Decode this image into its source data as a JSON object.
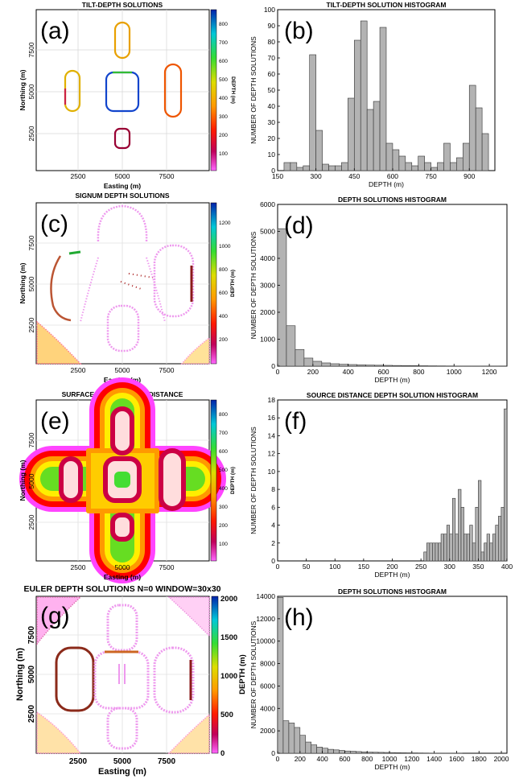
{
  "panels": [
    {
      "label": "(a)",
      "title": "TILT-DEPTH SOLUTIONS",
      "xlabel": "Easting (m)",
      "ylabel": "Northing (m)",
      "xticks": [
        "2500",
        "5000",
        "7500"
      ],
      "yticks": [
        "2500",
        "5000",
        "7500"
      ],
      "colorbar_label": "DEPTH (m)",
      "colorbar_ticks": [
        "100",
        "200",
        "300",
        "400",
        "500",
        "600",
        "700",
        "800"
      ]
    },
    {
      "label": "(c)",
      "title": "SIGNUM DEPTH SOLUTIONS",
      "xlabel": "Easting (m)",
      "ylabel": "Northing (m)",
      "xticks": [
        "2500",
        "5000",
        "7500"
      ],
      "yticks": [
        "2500",
        "5000",
        "7500"
      ],
      "colorbar_label": "DEPTH (m)",
      "colorbar_ticks": [
        "200",
        "400",
        "600",
        "800",
        "1000",
        "1200"
      ]
    },
    {
      "label": "(e)",
      "title": "SURFACE MAP - SOURCE DISTANCE",
      "xlabel": "Easting (m)",
      "ylabel": "Northing (m)",
      "xticks": [
        "2500",
        "5000",
        "7500"
      ],
      "yticks": [
        "2500",
        "5000",
        "7500"
      ],
      "colorbar_label": "DEPTH (m)",
      "colorbar_ticks": [
        "100",
        "200",
        "300",
        "400",
        "500",
        "600",
        "700",
        "800"
      ]
    },
    {
      "label": "(g)",
      "title": "EULER DEPTH SOLUTIONS N=0 WINDOW=30x30",
      "xlabel": "Easting (m)",
      "ylabel": "Northing (m)",
      "xticks": [
        "2500",
        "5000",
        "7500"
      ],
      "yticks": [
        "2500",
        "5000",
        "7500"
      ],
      "colorbar_label": "DEPTH (m)",
      "colorbar_ticks": [
        "0",
        "500",
        "1000",
        "1500",
        "2000"
      ]
    }
  ],
  "chart_data": [
    {
      "type": "bar",
      "label": "(b)",
      "title": "TILT-DEPTH SOLUTION HISTOGRAM",
      "xlabel": "DEPTH (m)",
      "ylabel": "NUMBER OF DEPTH SOLUTIONS",
      "xlim": [
        150,
        1000
      ],
      "ylim": [
        0,
        100
      ],
      "xticks": [
        150,
        300,
        450,
        600,
        750,
        900
      ],
      "yticks": [
        0,
        10,
        20,
        30,
        40,
        50,
        60,
        70,
        80,
        90,
        100
      ],
      "bin_width": 25,
      "bin_starts": [
        175,
        200,
        225,
        250,
        275,
        300,
        325,
        350,
        375,
        400,
        425,
        450,
        475,
        500,
        525,
        550,
        575,
        600,
        625,
        650,
        675,
        700,
        725,
        750,
        775,
        800,
        825,
        850,
        875,
        900,
        925,
        950
      ],
      "values": [
        5,
        5,
        2,
        3,
        72,
        25,
        4,
        3,
        3,
        5,
        45,
        81,
        93,
        38,
        43,
        89,
        17,
        13,
        9,
        5,
        3,
        9,
        5,
        2,
        5,
        17,
        5,
        8,
        17,
        53,
        39,
        23
      ]
    },
    {
      "type": "bar",
      "label": "(d)",
      "title": "DEPTH SOLUTIONS HISTOGRAM",
      "xlabel": "DEPTH (m)",
      "ylabel": "NUMBER OF DEPTH SOLUTIONS",
      "xlim": [
        0,
        1300
      ],
      "ylim": [
        0,
        6000
      ],
      "xticks": [
        0,
        200,
        400,
        600,
        800,
        1000,
        1200
      ],
      "yticks": [
        0,
        1000,
        2000,
        3000,
        4000,
        5000,
        6000
      ],
      "bin_width": 50,
      "bin_starts": [
        0,
        50,
        100,
        150,
        200,
        250,
        300,
        350,
        400,
        450,
        500,
        550,
        600,
        650,
        700,
        750,
        800,
        850,
        900,
        950,
        1000,
        1050,
        1100,
        1150,
        1200,
        1250
      ],
      "values": [
        5100,
        1500,
        620,
        300,
        180,
        120,
        90,
        70,
        60,
        50,
        40,
        35,
        30,
        25,
        20,
        18,
        15,
        12,
        10,
        8,
        6,
        5,
        4,
        3,
        2,
        1
      ]
    },
    {
      "type": "bar",
      "label": "(f)",
      "title": "SOURCE DISTANCE DEPTH SOLUTION HISTOGRAM",
      "xlabel": "DEPTH (m)",
      "ylabel": "NUMBER OF DEPTH SOLUTIONS",
      "xlim": [
        0,
        400
      ],
      "ylim": [
        0,
        18
      ],
      "xticks": [
        0,
        50,
        100,
        150,
        200,
        250,
        300,
        350,
        400
      ],
      "yticks": [
        0,
        2,
        4,
        6,
        8,
        10,
        12,
        14,
        16,
        18
      ],
      "bin_width": 5,
      "bin_starts": [
        255,
        260,
        265,
        270,
        275,
        280,
        285,
        290,
        295,
        300,
        305,
        310,
        315,
        320,
        325,
        330,
        335,
        340,
        345,
        350,
        355,
        360,
        365,
        370,
        375,
        380,
        385,
        390,
        395
      ],
      "values": [
        1,
        2,
        2,
        2,
        2,
        2,
        3,
        3,
        4,
        3,
        7,
        3,
        8,
        6,
        3,
        3,
        4,
        2,
        6,
        9,
        1,
        2,
        3,
        2,
        3,
        4,
        5,
        6,
        17
      ]
    },
    {
      "type": "bar",
      "label": "(h)",
      "title": "DEPTH SOLUTIONS HISTOGRAM",
      "xlabel": "DEPTH (m)",
      "ylabel": "NUMBER OF DEPTH SOLUTIONS",
      "xlim": [
        0,
        2050
      ],
      "ylim": [
        0,
        14000
      ],
      "xticks": [
        0,
        200,
        400,
        600,
        800,
        1000,
        1200,
        1400,
        1600,
        1800,
        2000
      ],
      "yticks": [
        0,
        2000,
        4000,
        6000,
        8000,
        10000,
        12000,
        14000
      ],
      "bin_width": 50,
      "bin_starts": [
        0,
        50,
        100,
        150,
        200,
        250,
        300,
        350,
        400,
        450,
        500,
        550,
        600,
        650,
        700,
        750,
        800,
        850,
        900,
        950,
        1000,
        1050,
        1100,
        1150,
        1200,
        1250,
        1300,
        1350,
        1400,
        1450,
        1500,
        1550,
        1600
      ],
      "values": [
        13900,
        2900,
        2700,
        2300,
        1600,
        1000,
        750,
        550,
        450,
        350,
        300,
        250,
        200,
        180,
        150,
        120,
        100,
        90,
        80,
        70,
        60,
        50,
        40,
        35,
        30,
        25,
        20,
        15,
        12,
        10,
        8,
        6,
        5
      ]
    }
  ]
}
